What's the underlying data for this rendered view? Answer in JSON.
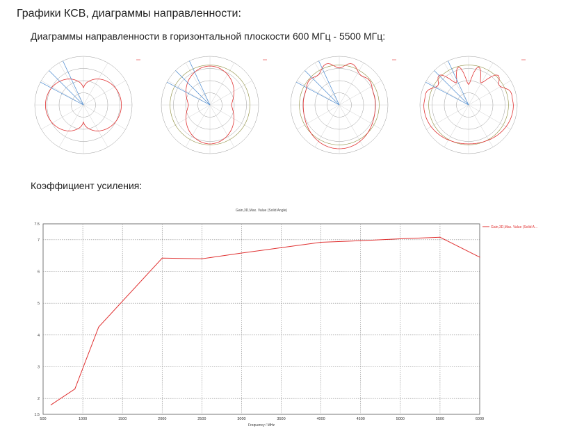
{
  "headings": {
    "main": "Графики КСВ, диаграммы направленности:",
    "polar_section": "Диаграммы направленности в горизонтальной плоскости 600 МГц - 5500 МГц:",
    "gain_section": "Коэффициент усиления:"
  },
  "colors": {
    "series": "#e03030",
    "polar_aux": "#8a8a3a",
    "polar_ref": "#4a8ad0",
    "grid": "#888888"
  },
  "chart_data": [
    {
      "type": "line",
      "title": "Gain,3D,Max. Value (Solid Angle)",
      "xlabel": "Frequency / MHz",
      "ylabel": "",
      "xlim": [
        500,
        6000
      ],
      "ylim": [
        1.5,
        7.5
      ],
      "x_ticks": [
        500,
        1000,
        1500,
        2000,
        2500,
        3000,
        3500,
        4000,
        4500,
        5000,
        5500,
        6000
      ],
      "y_ticks": [
        1.5,
        2,
        3,
        4,
        5,
        6,
        7,
        7.5
      ],
      "grid": true,
      "legend_position": "top-right",
      "series": [
        {
          "name": "Gain,3D,Max. Value (Solid A...",
          "x": [
            600,
            900,
            1200,
            2000,
            2500,
            3000,
            3500,
            4000,
            4500,
            5000,
            5500,
            6000
          ],
          "y": [
            1.8,
            2.3,
            4.25,
            6.42,
            6.4,
            6.58,
            6.75,
            6.92,
            6.97,
            7.03,
            7.08,
            6.45
          ]
        }
      ]
    },
    {
      "type": "polar",
      "panel": 1
    },
    {
      "type": "polar",
      "panel": 2
    },
    {
      "type": "polar",
      "panel": 3
    },
    {
      "type": "polar",
      "panel": 4
    }
  ]
}
